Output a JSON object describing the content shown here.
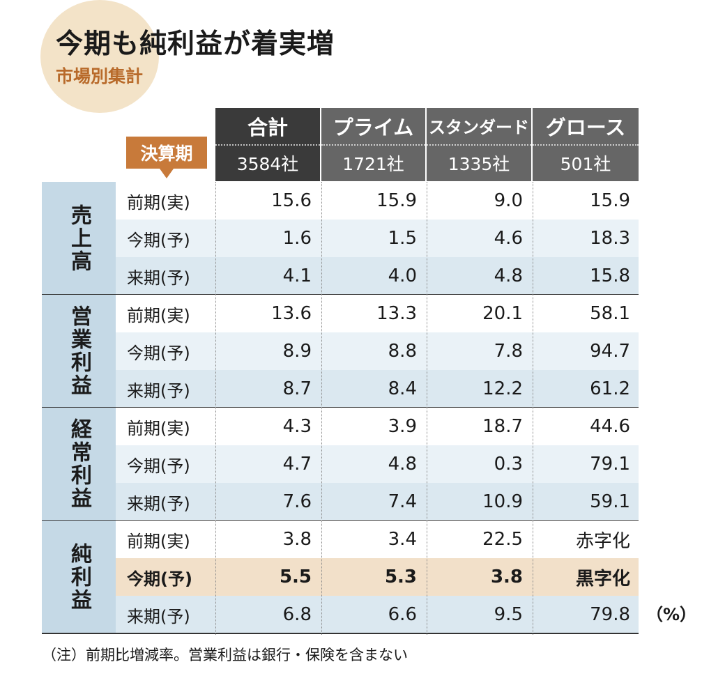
{
  "title": "今期も純利益が着実増",
  "subtitle": "市場別集計",
  "period_tag": "決算期",
  "unit": "（%）",
  "note": "（注）前期比増減率。営業利益は銀行・保険を含まない",
  "colors": {
    "header_dark": "#3a3a3a",
    "header_gray": "#666666",
    "accent": "#c87a3a",
    "group_bg": "#c5d9e6",
    "row_light": "#eaf2f7",
    "row_mid": "#dbe8f0",
    "highlight": "#f2e0c9"
  },
  "chart_data": {
    "type": "table",
    "title": "今期も純利益が着実増",
    "subtitle": "市場別集計",
    "columns": [
      {
        "name": "合計",
        "count": "3584社"
      },
      {
        "name": "プライム",
        "count": "1721社"
      },
      {
        "name": "スタンダード",
        "count": "1335社"
      },
      {
        "name": "グロース",
        "count": "501社"
      }
    ],
    "groups": [
      {
        "label": "売上高",
        "rows": [
          {
            "label": "前期(実)",
            "values": [
              "15.6",
              "15.9",
              "9.0",
              "15.9"
            ]
          },
          {
            "label": "今期(予)",
            "values": [
              "1.6",
              "1.5",
              "4.6",
              "18.3"
            ]
          },
          {
            "label": "来期(予)",
            "values": [
              "4.1",
              "4.0",
              "4.8",
              "15.8"
            ]
          }
        ]
      },
      {
        "label": "営業利益",
        "rows": [
          {
            "label": "前期(実)",
            "values": [
              "13.6",
              "13.3",
              "20.1",
              "58.1"
            ]
          },
          {
            "label": "今期(予)",
            "values": [
              "8.9",
              "8.8",
              "7.8",
              "94.7"
            ]
          },
          {
            "label": "来期(予)",
            "values": [
              "8.7",
              "8.4",
              "12.2",
              "61.2"
            ]
          }
        ]
      },
      {
        "label": "経常利益",
        "rows": [
          {
            "label": "前期(実)",
            "values": [
              "4.3",
              "3.9",
              "18.7",
              "44.6"
            ]
          },
          {
            "label": "今期(予)",
            "values": [
              "4.7",
              "4.8",
              "0.3",
              "79.1"
            ]
          },
          {
            "label": "来期(予)",
            "values": [
              "7.6",
              "7.4",
              "10.9",
              "59.1"
            ]
          }
        ]
      },
      {
        "label": "純利益",
        "rows": [
          {
            "label": "前期(実)",
            "values": [
              "3.8",
              "3.4",
              "22.5",
              "赤字化"
            ]
          },
          {
            "label": "今期(予)",
            "values": [
              "5.5",
              "5.3",
              "3.8",
              "黒字化"
            ],
            "highlight": true
          },
          {
            "label": "来期(予)",
            "values": [
              "6.8",
              "6.6",
              "9.5",
              "79.8"
            ]
          }
        ]
      }
    ]
  }
}
